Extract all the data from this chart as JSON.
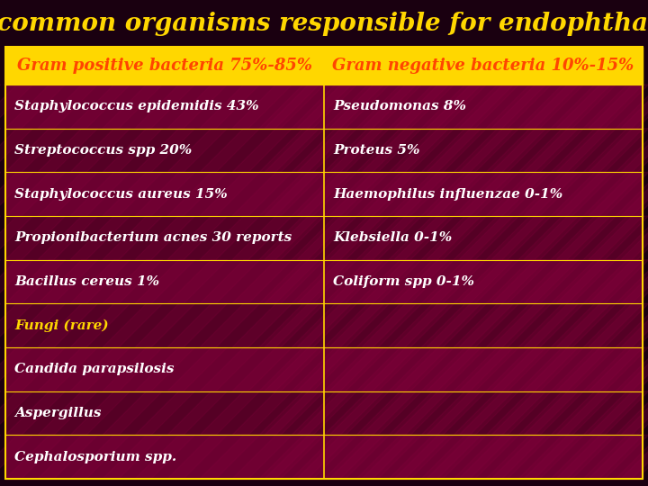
{
  "title": "Most common organisms responsible for endophthalmitis",
  "title_color": "#FFD700",
  "title_bg": "#1a0010",
  "title_fontsize": 20,
  "header_row": [
    "Gram positive bacteria 75%-85%",
    "Gram negative bacteria 10%-15%"
  ],
  "header_color": "#FF4500",
  "header_bg": "#FFD700",
  "header_fontsize": 13,
  "rows": [
    [
      "Staphylococcus epidemidis 43%",
      "Pseudomonas 8%"
    ],
    [
      "Streptococcus spp 20%",
      "Proteus 5%"
    ],
    [
      "Staphylococcus aureus 15%",
      "Haemophilus influenzae 0-1%"
    ],
    [
      "Propionibacterium acnes 30 reports",
      "Klebsiella 0-1%"
    ],
    [
      "Bacillus cereus 1%",
      "Coliform spp 0-1%"
    ],
    [
      "Fungi (rare)",
      ""
    ],
    [
      "Candida parapsilosis",
      ""
    ],
    [
      "Aspergillus",
      ""
    ],
    [
      "Cephalosporium spp.",
      ""
    ]
  ],
  "row_text_color": "#FFFFFF",
  "fungi_color": "#FFD700",
  "row_bg_dark": "#6B0030",
  "row_bg_darker": "#550025",
  "cell_border_color": "#FFD700",
  "fig_bg": "#1a0010"
}
